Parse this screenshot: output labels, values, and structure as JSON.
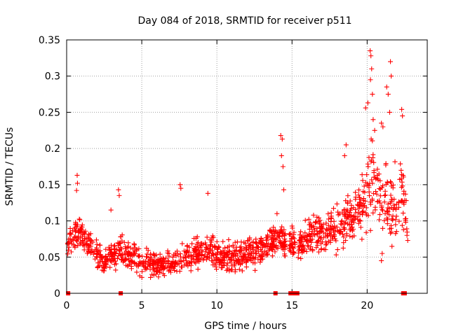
{
  "chart_data": {
    "type": "scatter",
    "title": "Day 084 of 2018, SRMTID for receiver p511",
    "xlabel": "GPS time / hours",
    "ylabel": "SRMTID / TECUs",
    "xlim": [
      0,
      24
    ],
    "ylim": [
      0,
      0.35
    ],
    "grid": true,
    "marker": "+",
    "series_color": "#ff0000",
    "x_ticks": [
      {
        "value": 0,
        "label": "0"
      },
      {
        "value": 5,
        "label": "5"
      },
      {
        "value": 10,
        "label": "10"
      },
      {
        "value": 15,
        "label": "15"
      },
      {
        "value": 20,
        "label": "20"
      }
    ],
    "y_ticks": [
      {
        "value": 0,
        "label": "0"
      },
      {
        "value": 0.05,
        "label": "0.05"
      },
      {
        "value": 0.1,
        "label": "0.1"
      },
      {
        "value": 0.15,
        "label": "0.15"
      },
      {
        "value": 0.2,
        "label": "0.2"
      },
      {
        "value": 0.25,
        "label": "0.25"
      },
      {
        "value": 0.3,
        "label": "0.3"
      },
      {
        "value": 0.35,
        "label": "0.35"
      }
    ],
    "zero_markers": [
      0.1,
      3.6,
      13.9,
      14.9,
      15.05,
      15.2,
      15.35,
      22.4,
      22.5
    ],
    "envelope": {
      "x": [
        0.0,
        0.5,
        0.8,
        1.5,
        2.0,
        2.5,
        3.0,
        3.5,
        4.0,
        4.5,
        5.0,
        5.5,
        6.0,
        6.5,
        7.0,
        7.5,
        8.0,
        8.5,
        9.0,
        9.5,
        10.0,
        10.5,
        11.0,
        11.5,
        12.0,
        12.5,
        13.0,
        13.5,
        14.0,
        14.3,
        14.5,
        15.0,
        15.5,
        16.0,
        16.5,
        17.0,
        17.5,
        18.0,
        18.5,
        19.0,
        19.5,
        20.0,
        20.3,
        20.6,
        21.0,
        21.5,
        22.0,
        22.3,
        22.6
      ],
      "low": [
        0.04,
        0.05,
        0.05,
        0.04,
        0.03,
        0.02,
        0.02,
        0.03,
        0.03,
        0.02,
        0.015,
        0.015,
        0.02,
        0.02,
        0.02,
        0.02,
        0.02,
        0.03,
        0.03,
        0.03,
        0.02,
        0.02,
        0.02,
        0.02,
        0.03,
        0.03,
        0.03,
        0.04,
        0.05,
        0.05,
        0.04,
        0.04,
        0.04,
        0.04,
        0.04,
        0.04,
        0.05,
        0.04,
        0.05,
        0.06,
        0.06,
        0.07,
        0.07,
        0.08,
        0.06,
        0.05,
        0.05,
        0.06,
        0.07
      ],
      "high": [
        0.09,
        0.11,
        0.12,
        0.1,
        0.08,
        0.07,
        0.08,
        0.09,
        0.08,
        0.08,
        0.07,
        0.07,
        0.06,
        0.06,
        0.06,
        0.07,
        0.08,
        0.08,
        0.09,
        0.09,
        0.08,
        0.08,
        0.08,
        0.08,
        0.08,
        0.09,
        0.09,
        0.1,
        0.1,
        0.11,
        0.1,
        0.1,
        0.1,
        0.11,
        0.13,
        0.12,
        0.13,
        0.14,
        0.15,
        0.15,
        0.16,
        0.2,
        0.24,
        0.22,
        0.19,
        0.2,
        0.2,
        0.22,
        0.12
      ]
    },
    "highlights": [
      {
        "x": 0.7,
        "y": 0.163
      },
      {
        "x": 0.72,
        "y": 0.152
      },
      {
        "x": 0.66,
        "y": 0.142
      },
      {
        "x": 3.45,
        "y": 0.143
      },
      {
        "x": 3.5,
        "y": 0.135
      },
      {
        "x": 2.95,
        "y": 0.115
      },
      {
        "x": 7.55,
        "y": 0.15
      },
      {
        "x": 7.6,
        "y": 0.145
      },
      {
        "x": 9.4,
        "y": 0.138
      },
      {
        "x": 14.25,
        "y": 0.218
      },
      {
        "x": 14.35,
        "y": 0.213
      },
      {
        "x": 14.3,
        "y": 0.19
      },
      {
        "x": 14.4,
        "y": 0.175
      },
      {
        "x": 14.45,
        "y": 0.143
      },
      {
        "x": 14.0,
        "y": 0.11
      },
      {
        "x": 18.6,
        "y": 0.205
      },
      {
        "x": 18.5,
        "y": 0.19
      },
      {
        "x": 19.9,
        "y": 0.256
      },
      {
        "x": 20.05,
        "y": 0.263
      },
      {
        "x": 20.2,
        "y": 0.335
      },
      {
        "x": 20.25,
        "y": 0.328
      },
      {
        "x": 20.3,
        "y": 0.31
      },
      {
        "x": 20.22,
        "y": 0.295
      },
      {
        "x": 20.35,
        "y": 0.275
      },
      {
        "x": 20.4,
        "y": 0.24
      },
      {
        "x": 20.5,
        "y": 0.225
      },
      {
        "x": 21.3,
        "y": 0.285
      },
      {
        "x": 21.4,
        "y": 0.275
      },
      {
        "x": 21.5,
        "y": 0.25
      },
      {
        "x": 21.55,
        "y": 0.32
      },
      {
        "x": 21.6,
        "y": 0.3
      },
      {
        "x": 22.3,
        "y": 0.254
      },
      {
        "x": 22.35,
        "y": 0.245
      },
      {
        "x": 20.95,
        "y": 0.235
      },
      {
        "x": 21.05,
        "y": 0.23
      },
      {
        "x": 22.55,
        "y": 0.137
      },
      {
        "x": 22.6,
        "y": 0.128
      },
      {
        "x": 22.65,
        "y": 0.08
      },
      {
        "x": 22.7,
        "y": 0.073
      },
      {
        "x": 20.95,
        "y": 0.045
      },
      {
        "x": 21.0,
        "y": 0.055
      }
    ],
    "generated_point_count": 1400
  }
}
